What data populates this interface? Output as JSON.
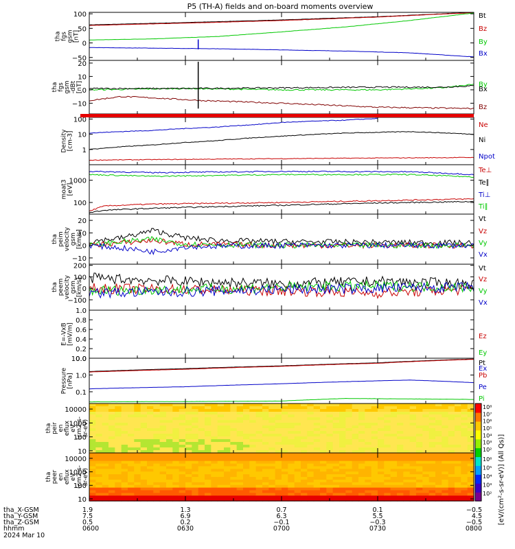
{
  "title": "P5 (TH-A) fields and on-board moments overview",
  "chart_data": [
    {
      "type": "line",
      "ylabel": [
        "tha",
        "fgs",
        "gsm",
        "[nT]"
      ],
      "ylim": [
        -60,
        105
      ],
      "yscale": "linear",
      "yticks": [
        -50,
        0,
        50,
        100
      ],
      "ytick_labels": [
        "−50",
        "0",
        "50",
        "100"
      ],
      "xlim": [
        0,
        120
      ],
      "series": [
        {
          "name": "Bt",
          "color": "#000000",
          "x": [
            0,
            30,
            60,
            90,
            120
          ],
          "y": [
            62,
            70,
            79,
            90,
            105
          ]
        },
        {
          "name": "Bz",
          "color": "#c80000",
          "x": [
            0,
            30,
            60,
            90,
            120
          ],
          "y": [
            60,
            68,
            77,
            89,
            104
          ]
        },
        {
          "name": "By",
          "color": "#00c800",
          "x": [
            0,
            20,
            40,
            60,
            80,
            100,
            120
          ],
          "y": [
            10,
            14,
            22,
            38,
            55,
            77,
            103
          ]
        },
        {
          "name": "Bx",
          "color": "#0000c8",
          "x": [
            0,
            20,
            40,
            60,
            80,
            100,
            120
          ],
          "y": [
            -16,
            -18,
            -20,
            -24,
            -28,
            -34,
            -48
          ]
        }
      ],
      "annotations": [
        {
          "x": 34,
          "y_from": -22,
          "y_to": 12,
          "color": "#0000c8"
        }
      ]
    },
    {
      "type": "line",
      "ylabel": [
        "tha",
        "fgs",
        "gsm",
        "-dBt",
        "[nT]"
      ],
      "ylim": [
        -18,
        22
      ],
      "yscale": "linear",
      "yticks": [
        -10,
        0,
        10,
        20
      ],
      "ytick_labels": [
        "−10",
        "0",
        "10",
        "20"
      ],
      "xlim": [
        0,
        120
      ],
      "series": [
        {
          "name": "By",
          "color": "#00c800",
          "x": [
            0,
            30,
            60,
            90,
            110,
            120
          ],
          "y": [
            0,
            1,
            0,
            0,
            1.5,
            4
          ]
        },
        {
          "name": "Bx",
          "color": "#000000",
          "x": [
            0,
            30,
            60,
            90,
            110,
            120
          ],
          "y": [
            1,
            1,
            1.5,
            2,
            2,
            3
          ]
        },
        {
          "name": "Bz",
          "color": "#800000",
          "x": [
            0,
            10,
            20,
            35,
            60,
            90,
            120
          ],
          "y": [
            -8,
            -5,
            -6,
            -8,
            -10,
            -13,
            -14
          ]
        }
      ],
      "annotations": [
        {
          "x": 34,
          "y_from": -14,
          "y_to": 21,
          "color": "#000000"
        }
      ]
    },
    {
      "type": "line",
      "ylabel": [
        "Density",
        "[cm-3]"
      ],
      "ylim": [
        0.1,
        130
      ],
      "yscale": "log",
      "yticks": [
        1,
        10,
        100
      ],
      "ytick_labels": [
        "1",
        "10",
        "100"
      ],
      "xlim": [
        0,
        120
      ],
      "series": [
        {
          "name": "Ne",
          "color": "#c80000",
          "x": [
            0,
            120
          ],
          "y": [
            0.2,
            0.3
          ]
        },
        {
          "name": "Ni",
          "color": "#000000",
          "x": [
            0,
            20,
            40,
            60,
            80,
            100,
            120
          ],
          "y": [
            1.0,
            2.0,
            3.8,
            7.5,
            12,
            15,
            10
          ]
        },
        {
          "name": "Npot",
          "color": "#0000c8",
          "x": [
            0,
            20,
            40,
            53,
            60,
            80,
            90
          ],
          "y": [
            12,
            18,
            30,
            45,
            60,
            85,
            110
          ]
        }
      ]
    },
    {
      "type": "line",
      "ylabel": [
        "moat3",
        "[eV]"
      ],
      "ylim": [
        30,
        5000
      ],
      "yscale": "log",
      "yticks": [
        100,
        1000
      ],
      "ytick_labels": [
        "100",
        "1000"
      ],
      "xlim": [
        0,
        120
      ],
      "series": [
        {
          "name": "Te⊥",
          "color": "#c80000",
          "x": [
            0,
            5,
            20,
            60,
            90,
            120
          ],
          "y": [
            40,
            70,
            85,
            100,
            120,
            145
          ]
        },
        {
          "name": "Te∥",
          "color": "#000000",
          "x": [
            0,
            5,
            20,
            60,
            90,
            120
          ],
          "y": [
            35,
            45,
            55,
            75,
            95,
            110
          ]
        },
        {
          "name": "Ti⊥",
          "color": "#0000c8",
          "x": [
            0,
            20,
            60,
            100,
            120
          ],
          "y": [
            2500,
            2200,
            2500,
            2400,
            1800
          ]
        },
        {
          "name": "Ti∥",
          "color": "#00c800",
          "x": [
            0,
            20,
            60,
            100,
            120
          ],
          "y": [
            1800,
            1500,
            1800,
            1800,
            1400
          ]
        }
      ]
    },
    {
      "type": "line",
      "ylabel": [
        "tha",
        "peim",
        "velocity",
        "gsm",
        "[km/s]"
      ],
      "ylim": [
        -15,
        25
      ],
      "yscale": "linear",
      "yticks": [
        -10,
        0,
        10,
        20
      ],
      "ytick_labels": [
        "−10",
        "0",
        "10",
        "20"
      ],
      "xlim": [
        0,
        120
      ],
      "series": [
        {
          "name": "Vt",
          "color": "#000000",
          "x": [
            0,
            10,
            20,
            30,
            40,
            60,
            120
          ],
          "y": [
            3,
            6,
            12,
            6,
            4,
            3,
            2
          ]
        },
        {
          "name": "Vz",
          "color": "#c80000",
          "x": [
            0,
            10,
            20,
            30,
            60,
            120
          ],
          "y": [
            0,
            2,
            4,
            1,
            0,
            0
          ]
        },
        {
          "name": "Vy",
          "color": "#00c800",
          "x": [
            0,
            10,
            20,
            30,
            60,
            120
          ],
          "y": [
            0,
            3,
            5,
            1,
            0,
            0
          ]
        },
        {
          "name": "Vx",
          "color": "#0000c8",
          "x": [
            0,
            10,
            20,
            30,
            60,
            120
          ],
          "y": [
            0,
            -2,
            -5,
            -1,
            0,
            0
          ]
        }
      ]
    },
    {
      "type": "line",
      "ylabel": [
        "tha",
        "peem",
        "velocity",
        "gsm",
        "[km/s]"
      ],
      "ylim": [
        -190,
        210
      ],
      "yscale": "linear",
      "yticks": [
        -100,
        0,
        100,
        200
      ],
      "ytick_labels": [
        "−100",
        "0",
        "100",
        "200"
      ],
      "xlim": [
        0,
        120
      ],
      "series": [
        {
          "name": "Vt",
          "color": "#000000",
          "x": [
            0,
            30,
            60,
            90,
            120
          ],
          "y": [
            90,
            60,
            40,
            60,
            40
          ]
        },
        {
          "name": "Vz",
          "color": "#c80000",
          "x": [
            0,
            30,
            60,
            90,
            120
          ],
          "y": [
            0,
            -10,
            -20,
            -40,
            -10
          ]
        },
        {
          "name": "Vy",
          "color": "#00c800",
          "x": [
            0,
            30,
            60,
            90,
            120
          ],
          "y": [
            -20,
            -10,
            10,
            20,
            10
          ]
        },
        {
          "name": "Vx",
          "color": "#0000c8",
          "x": [
            0,
            30,
            60,
            90,
            120
          ],
          "y": [
            -40,
            -30,
            -10,
            0,
            10
          ]
        }
      ]
    },
    {
      "type": "line",
      "ylabel": [
        "E=-VxB",
        "[mV/m]"
      ],
      "ylim": [
        0,
        1
      ],
      "yscale": "linear",
      "yticks": [
        0,
        0.2,
        0.4,
        0.6,
        0.8,
        1.0
      ],
      "ytick_labels": [
        "0.0",
        "0.2",
        "0.4",
        "0.6",
        "0.8",
        "1.0"
      ],
      "xlim": [
        0,
        120
      ],
      "series": [
        {
          "name": "Ez",
          "color": "#c80000",
          "x": [],
          "y": []
        },
        {
          "name": "Ey",
          "color": "#00c800",
          "x": [],
          "y": []
        },
        {
          "name": "Ex",
          "color": "#0000c8",
          "x": [],
          "y": []
        }
      ]
    },
    {
      "type": "line",
      "ylabel": [
        "Pressure",
        "[nPa]"
      ],
      "ylim": [
        0.02,
        10
      ],
      "yscale": "log",
      "yticks": [
        0.1,
        1,
        10
      ],
      "ytick_labels": [
        "0.1",
        "1.0",
        "10.0"
      ],
      "xlim": [
        0,
        120
      ],
      "series": [
        {
          "name": "Pt",
          "color": "#000000",
          "x": [
            0,
            30,
            60,
            90,
            120
          ],
          "y": [
            1.6,
            2.4,
            3.5,
            5.3,
            9.0
          ]
        },
        {
          "name": "Pb",
          "color": "#c80000",
          "x": [
            0,
            30,
            60,
            90,
            120
          ],
          "y": [
            1.5,
            2.2,
            3.3,
            5.0,
            8.6
          ]
        },
        {
          "name": "Pe",
          "color": "#0000c8",
          "x": [
            0,
            30,
            60,
            90,
            100,
            120
          ],
          "y": [
            0.15,
            0.2,
            0.3,
            0.45,
            0.5,
            0.35
          ]
        },
        {
          "name": "Pi",
          "color": "#00c800",
          "x": [
            0,
            30,
            60,
            80,
            120
          ],
          "y": [
            0.025,
            0.026,
            0.028,
            0.04,
            0.035
          ]
        }
      ]
    },
    {
      "type": "heatmap",
      "ylabel": [
        "tha",
        "peir",
        "en",
        "eflux",
        "eV",
        "(cm2-s-",
        "sr-eV)"
      ],
      "ylim": [
        7,
        25000
      ],
      "yscale": "log",
      "yticks": [
        10,
        100,
        1000,
        10000
      ],
      "ytick_labels": [
        "10",
        "100",
        "1000",
        "10000"
      ],
      "xlim": [
        0,
        120
      ]
    },
    {
      "type": "heatmap",
      "ylabel": [
        "tha",
        "peer",
        "en",
        "eflux",
        "eV",
        "(cm2-s-",
        "sr-eV)"
      ],
      "ylim": [
        7,
        25000
      ],
      "yscale": "log",
      "yticks": [
        10,
        100,
        1000,
        10000
      ],
      "ytick_labels": [
        "10",
        "100",
        "1000",
        "10000"
      ],
      "xlim": [
        0,
        120
      ]
    }
  ],
  "colorbar": {
    "ticks": [
      "10⁸",
      "10⁷",
      "10⁶",
      "10⁵",
      "10⁴",
      "10³",
      "10²"
    ],
    "ticks2": [
      "10⁶",
      "10⁵",
      "10⁴",
      "10³",
      "10²"
    ],
    "label": "[eV/(cm²-s-sr-eV)] (All Qs)]"
  },
  "xaxis": {
    "x_values": [
      0,
      30,
      60,
      90,
      120
    ],
    "rows": [
      {
        "label": "tha_X-GSM",
        "values": [
          "1.9",
          "1.3",
          "0.7",
          "0.1",
          "−0.5"
        ]
      },
      {
        "label": "tha_Y-GSM",
        "values": [
          "7.5",
          "6.9",
          "6.3",
          "5.5",
          "4.5"
        ]
      },
      {
        "label": "tha_Z-GSM",
        "values": [
          "0.5",
          "0.2",
          "−0.1",
          "−0.3",
          "−0.5"
        ]
      },
      {
        "label": "hhmm",
        "values": [
          "0600",
          "0630",
          "0700",
          "0730",
          "0800"
        ]
      }
    ],
    "date": "2024 Mar 10"
  },
  "colors": {
    "black": "#000000",
    "red": "#c80000",
    "green": "#00c800",
    "blue": "#0000c8",
    "darkred": "#800000"
  }
}
